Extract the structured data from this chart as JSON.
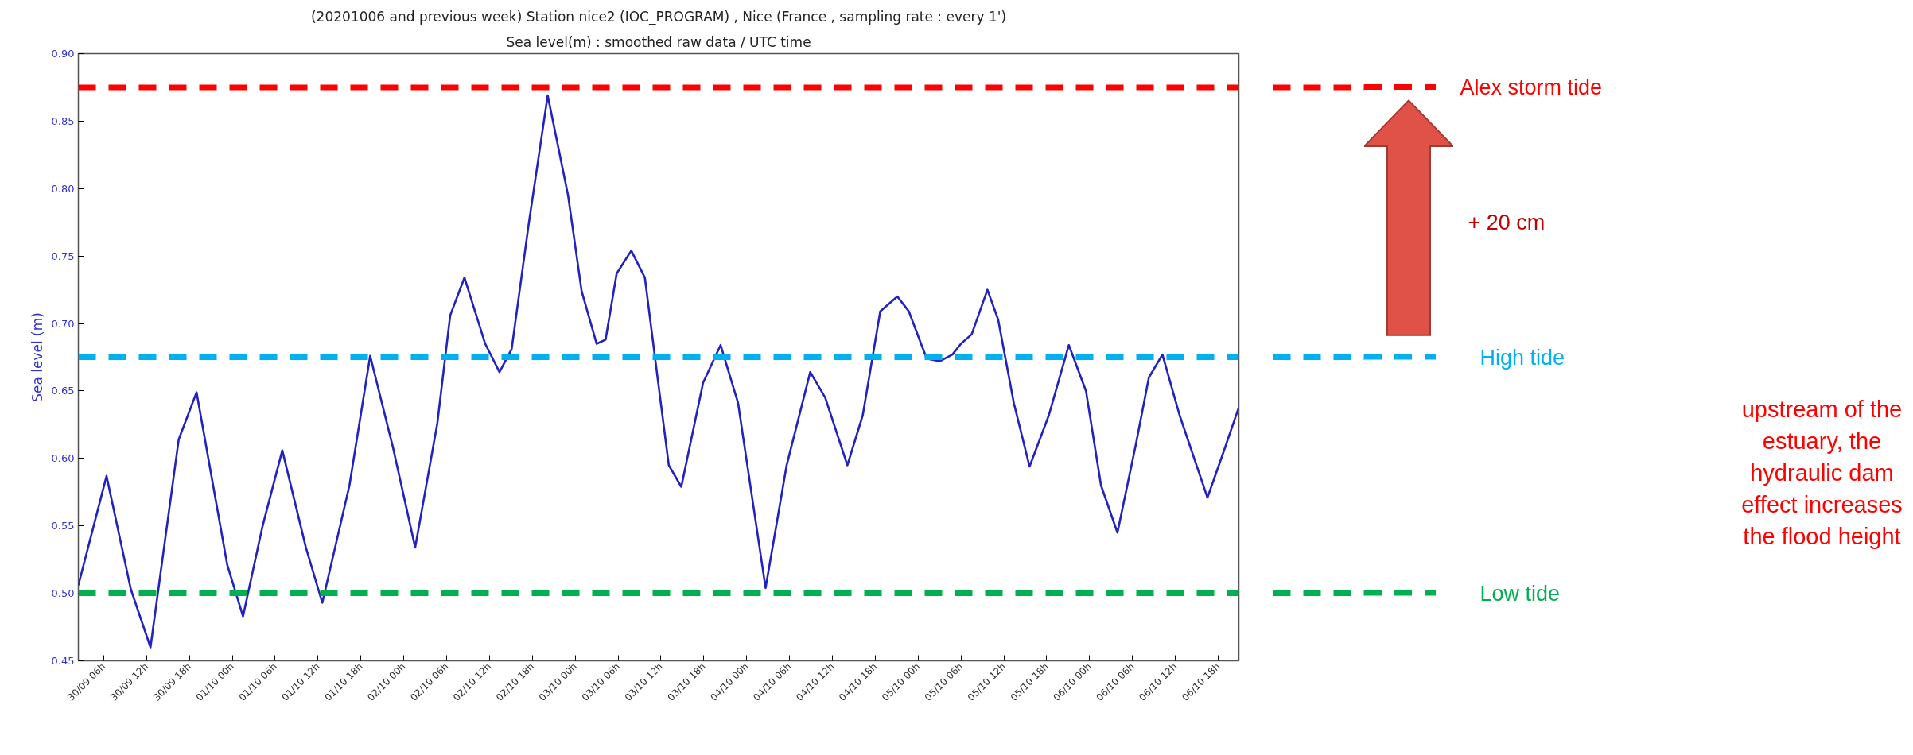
{
  "chart_data": {
    "type": "line",
    "title": "(20201006 and previous week) Station nice2 (IOC_PROGRAM) , Nice (France , sampling rate : every 1')",
    "subtitle": "Sea level(m) : smoothed raw data / UTC time",
    "ylabel": "Sea level (m)",
    "x": [
      "2020-09-30T02:27",
      "2020-09-30T06:24",
      "2020-09-30T09:48",
      "2020-09-30T12:33",
      "2020-09-30T16:30",
      "2020-09-30T19:00",
      "2020-09-30T23:18",
      "2020-10-01T01:30",
      "2020-10-01T04:12",
      "2020-10-01T07:00",
      "2020-10-01T10:18",
      "2020-10-01T12:36",
      "2020-10-01T16:24",
      "2020-10-01T19:18",
      "2020-10-01T22:30",
      "2020-10-02T01:36",
      "2020-10-02T04:42",
      "2020-10-02T06:30",
      "2020-10-02T08:30",
      "2020-10-02T11:24",
      "2020-10-02T13:24",
      "2020-10-02T15:06",
      "2020-10-02T17:30",
      "2020-10-02T20:09",
      "2020-10-02T23:00",
      "2020-10-03T00:54",
      "2020-10-03T03:00",
      "2020-10-03T04:15",
      "2020-10-03T05:48",
      "2020-10-03T07:51",
      "2020-10-03T09:45",
      "2020-10-03T11:36",
      "2020-10-03T13:06",
      "2020-10-03T14:51",
      "2020-10-03T17:54",
      "2020-10-03T20:21",
      "2020-10-03T22:48",
      "2020-10-04T02:39",
      "2020-10-04T05:36",
      "2020-10-04T08:54",
      "2020-10-04T11:00",
      "2020-10-04T14:06",
      "2020-10-04T16:15",
      "2020-10-04T18:42",
      "2020-10-04T21:06",
      "2020-10-04T22:42",
      "2020-10-05T01:12",
      "2020-10-05T03:00",
      "2020-10-05T04:48",
      "2020-10-05T06:00",
      "2020-10-05T07:30",
      "2020-10-05T09:42",
      "2020-10-05T11:12",
      "2020-10-05T13:24",
      "2020-10-05T15:36",
      "2020-10-05T18:18",
      "2020-10-05T21:06",
      "2020-10-05T23:30",
      "2020-10-06T01:36",
      "2020-10-06T03:54",
      "2020-10-06T06:30",
      "2020-10-06T08:18",
      "2020-10-06T10:12",
      "2020-10-06T12:36",
      "2020-10-06T16:30",
      "2020-10-06T18:42",
      "2020-10-06T20:54"
    ],
    "series": [
      {
        "color": "#2222c0",
        "values": [
          0.506,
          0.587,
          0.503,
          0.46,
          0.614,
          0.649,
          0.521,
          0.483,
          0.549,
          0.606,
          0.534,
          0.493,
          0.58,
          0.676,
          0.608,
          0.534,
          0.626,
          0.706,
          0.734,
          0.685,
          0.664,
          0.681,
          0.774,
          0.869,
          0.795,
          0.724,
          0.685,
          0.688,
          0.737,
          0.754,
          0.734,
          0.657,
          0.595,
          0.579,
          0.656,
          0.684,
          0.641,
          0.504,
          0.595,
          0.664,
          0.645,
          0.595,
          0.632,
          0.709,
          0.72,
          0.709,
          0.674,
          0.672,
          0.677,
          0.685,
          0.692,
          0.725,
          0.703,
          0.641,
          0.594,
          0.632,
          0.684,
          0.65,
          0.58,
          0.545,
          0.611,
          0.66,
          0.677,
          0.632,
          0.571,
          0.604,
          0.638
        ]
      }
    ],
    "xlim": [
      "2020-09-30T02:27",
      "2020-10-06T20:54"
    ],
    "xticks": [
      {
        "value": "2020-09-30T06:00",
        "label": "30/09 06h"
      },
      {
        "value": "2020-09-30T12:00",
        "label": "30/09 12h"
      },
      {
        "value": "2020-09-30T18:00",
        "label": "30/09 18h"
      },
      {
        "value": "2020-10-01T00:00",
        "label": "01/10 00h"
      },
      {
        "value": "2020-10-01T06:00",
        "label": "01/10 06h"
      },
      {
        "value": "2020-10-01T12:00",
        "label": "01/10 12h"
      },
      {
        "value": "2020-10-01T18:00",
        "label": "01/10 18h"
      },
      {
        "value": "2020-10-02T00:00",
        "label": "02/10 00h"
      },
      {
        "value": "2020-10-02T06:00",
        "label": "02/10 06h"
      },
      {
        "value": "2020-10-02T12:00",
        "label": "02/10 12h"
      },
      {
        "value": "2020-10-02T18:00",
        "label": "02/10 18h"
      },
      {
        "value": "2020-10-03T00:00",
        "label": "03/10 00h"
      },
      {
        "value": "2020-10-03T06:00",
        "label": "03/10 06h"
      },
      {
        "value": "2020-10-03T12:00",
        "label": "03/10 12h"
      },
      {
        "value": "2020-10-03T18:00",
        "label": "03/10 18h"
      },
      {
        "value": "2020-10-04T00:00",
        "label": "04/10 00h"
      },
      {
        "value": "2020-10-04T06:00",
        "label": "04/10 06h"
      },
      {
        "value": "2020-10-04T12:00",
        "label": "04/10 12h"
      },
      {
        "value": "2020-10-04T18:00",
        "label": "04/10 18h"
      },
      {
        "value": "2020-10-05T00:00",
        "label": "05/10 00h"
      },
      {
        "value": "2020-10-05T06:00",
        "label": "05/10 06h"
      },
      {
        "value": "2020-10-05T12:00",
        "label": "05/10 12h"
      },
      {
        "value": "2020-10-05T18:00",
        "label": "05/10 18h"
      },
      {
        "value": "2020-10-06T00:00",
        "label": "06/10 00h"
      },
      {
        "value": "2020-10-06T06:00",
        "label": "06/10 06h"
      },
      {
        "value": "2020-10-06T12:00",
        "label": "06/10 12h"
      },
      {
        "value": "2020-10-06T18:00",
        "label": "06/10 18h"
      }
    ],
    "ylim": [
      0.45,
      0.9
    ],
    "yticks": [
      {
        "value": 0.45,
        "label": "0.45"
      },
      {
        "value": 0.5,
        "label": "0.50"
      },
      {
        "value": 0.55,
        "label": "0.55"
      },
      {
        "value": 0.6,
        "label": "0.60"
      },
      {
        "value": 0.65,
        "label": "0.65"
      },
      {
        "value": 0.7,
        "label": "0.70"
      },
      {
        "value": 0.75,
        "label": "0.75"
      },
      {
        "value": 0.8,
        "label": "0.80"
      },
      {
        "value": 0.85,
        "label": "0.85"
      },
      {
        "value": 0.9,
        "label": "0.90"
      }
    ],
    "ref_lines": [
      {
        "axis": "y",
        "value": 0.875,
        "label": "Alex storm tide",
        "color": "#ff0000",
        "line_style": "dashed"
      },
      {
        "axis": "y",
        "value": 0.675,
        "label": "High tide",
        "color": "#00b0f0",
        "line_style": "dashed"
      },
      {
        "axis": "y",
        "value": 0.5,
        "label": "Low tide",
        "color": "#00b050",
        "line_style": "dashed"
      }
    ],
    "annotations": [
      "+ 20 cm",
      "upstream of the\nestuary, the\nhydraulic dam\neffect increases\nthe flood height"
    ],
    "grid": false,
    "marker": "none",
    "line_style": "solid"
  }
}
